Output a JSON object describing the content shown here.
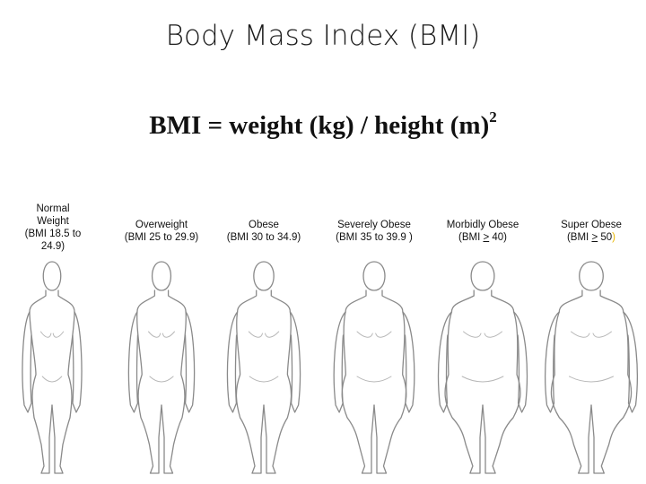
{
  "title": "Body Mass Index (BMI)",
  "formula": {
    "main": "BMI = weight (kg) / height (m)",
    "exponent": "2"
  },
  "categories": [
    {
      "line1": "Normal",
      "line2": "Weight",
      "line3": "(BMI 18.5 to",
      "line4": "24.9)"
    },
    {
      "line1": "Overweight",
      "line2": "(BMI 25 to 29.9)"
    },
    {
      "line1": "Obese",
      "line2": "(BMI 30 to 34.9)"
    },
    {
      "line1": "Severely Obese",
      "line2": "(BMI 35 to 39.9 )"
    },
    {
      "line1": "Morbidly Obese",
      "pre": "(BMI ",
      "op": ">",
      "post": " 40)"
    },
    {
      "line1": "Super Obese",
      "pre": "(BMI ",
      "op": ">",
      "post": " 50",
      "tail": ")"
    }
  ],
  "figures": [
    {
      "icon": "normal-weight-body-icon",
      "width": 1.0
    },
    {
      "icon": "overweight-body-icon",
      "width": 1.15
    },
    {
      "icon": "obese-body-icon",
      "width": 1.32
    },
    {
      "icon": "severely-obese-body-icon",
      "width": 1.5
    },
    {
      "icon": "morbidly-obese-body-icon",
      "width": 1.7
    },
    {
      "icon": "super-obese-body-icon",
      "width": 1.78
    }
  ]
}
